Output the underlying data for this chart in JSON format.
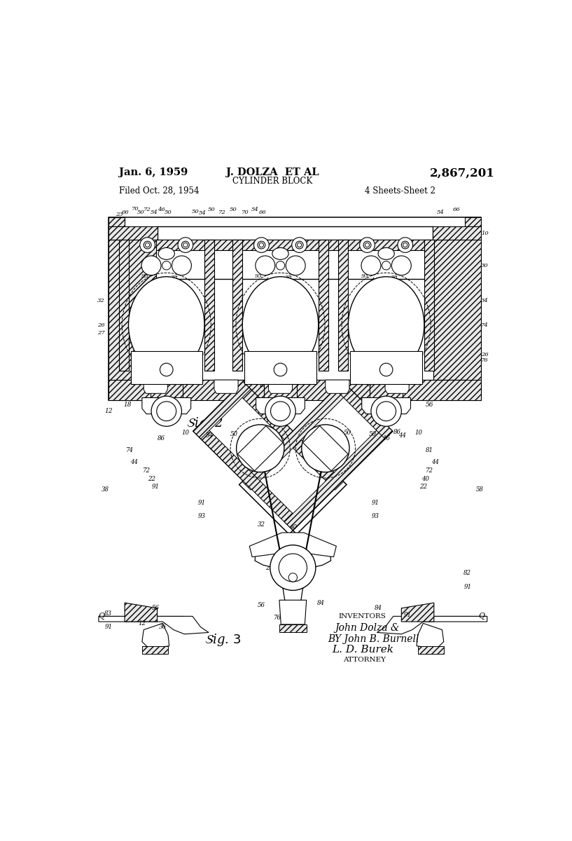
{
  "background_color": "#ffffff",
  "page_width": 8.17,
  "page_height": 12.0,
  "header": {
    "date": "Jan. 6, 1959",
    "inventor": "J. DOLZA  ET AL",
    "patent_number": "2,867,201",
    "title": "CYLINDER BLOCK",
    "filed": "Filed Oct. 28, 1954",
    "sheets": "4 Sheets-Sheet 2"
  }
}
